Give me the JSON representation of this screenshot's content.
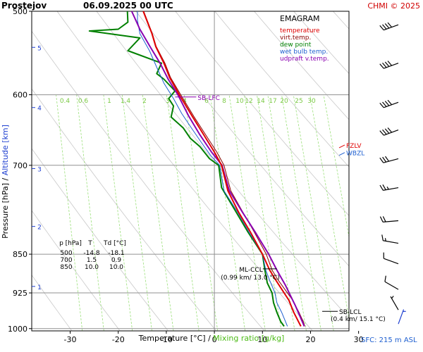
{
  "header": {
    "station": "Prostejov",
    "datetime": "06.09.2025 00 UTC",
    "credit": "CHMI © 2025"
  },
  "chart_data": {
    "type": "line",
    "subtype": "emagram",
    "title": "EMAGRAM",
    "xlabel_temperature": "Temperature [°C]",
    "xlabel_separator": "/",
    "xlabel_mixing": "Mixing ratio [g/kg]",
    "ylabel_pressure": "Pressure [hPa]",
    "ylabel_separator": "/",
    "ylabel_altitude": "Altitude [km]",
    "footer": "SFC: 215 m ASL",
    "xlim": [
      -38,
      28
    ],
    "ylim_hpa": [
      1005,
      500
    ],
    "x_ticks": [
      -30,
      -20,
      -10,
      0,
      10,
      20,
      30
    ],
    "p_ticks": [
      500,
      600,
      700,
      850,
      925,
      1000
    ],
    "altitude_ticks_km": [
      {
        "km": "1",
        "p": 912
      },
      {
        "km": "2",
        "p": 800
      },
      {
        "km": "3",
        "p": 705
      },
      {
        "km": "4",
        "p": 617
      },
      {
        "km": "5",
        "p": 541
      }
    ],
    "mixing_ratio_labels": [
      "0.4",
      "0.6",
      "1",
      "1.4",
      "2",
      "3",
      "4",
      "6",
      "8",
      "10",
      "12",
      "14",
      "17",
      "20",
      "25",
      "30"
    ],
    "legend": {
      "position": "top-right",
      "entries": [
        {
          "label": "temperature",
          "color": "#e00000"
        },
        {
          "label": "virt.temp.",
          "color": "#8b0000"
        },
        {
          "label": "dew point",
          "color": "#008000"
        },
        {
          "label": "wet bulb temp.",
          "color": "#1e5fd0"
        },
        {
          "label": "udpraft v.temp.",
          "color": "#8a00b0"
        }
      ]
    },
    "series": [
      {
        "name": "temperature",
        "color": "#e00000",
        "points": [
          [
            18.0,
            995
          ],
          [
            17.5,
            985
          ],
          [
            16.5,
            965
          ],
          [
            15.5,
            940
          ],
          [
            14.5,
            925
          ],
          [
            12.8,
            900
          ],
          [
            11.5,
            880
          ],
          [
            10.0,
            850
          ],
          [
            7.5,
            810
          ],
          [
            5.0,
            775
          ],
          [
            2.8,
            740
          ],
          [
            1.5,
            700
          ],
          [
            0.0,
            680
          ],
          [
            -2.2,
            655
          ],
          [
            -4.5,
            630
          ],
          [
            -7.3,
            600
          ],
          [
            -9.3,
            578
          ],
          [
            -10.5,
            560
          ],
          [
            -12.2,
            540
          ],
          [
            -13.0,
            525
          ],
          [
            -14.8,
            500
          ]
        ]
      },
      {
        "name": "virt.temp.",
        "color": "#8b0000",
        "points": [
          [
            18.8,
            995
          ],
          [
            18.5,
            985
          ],
          [
            17.6,
            965
          ],
          [
            16.3,
            940
          ],
          [
            15.2,
            925
          ],
          [
            13.3,
            900
          ],
          [
            12.0,
            880
          ],
          [
            10.8,
            850
          ],
          [
            8.3,
            810
          ],
          [
            5.9,
            775
          ],
          [
            3.4,
            740
          ],
          [
            2.0,
            700
          ],
          [
            0.5,
            680
          ],
          [
            -1.8,
            655
          ],
          [
            -4.2,
            630
          ],
          [
            -7.0,
            600
          ],
          [
            -9.1,
            578
          ],
          [
            -10.3,
            560
          ],
          [
            -12.1,
            540
          ],
          [
            -12.9,
            525
          ],
          [
            -14.7,
            500
          ]
        ]
      },
      {
        "name": "dew point",
        "color": "#008000",
        "points": [
          [
            14.5,
            995
          ],
          [
            13.8,
            985
          ],
          [
            13.0,
            965
          ],
          [
            12.3,
            945
          ],
          [
            12.0,
            925
          ],
          [
            11.0,
            905
          ],
          [
            10.5,
            880
          ],
          [
            10.0,
            850
          ],
          [
            7.0,
            810
          ],
          [
            4.5,
            775
          ],
          [
            1.5,
            735
          ],
          [
            0.9,
            700
          ],
          [
            -1.0,
            690
          ],
          [
            -3.0,
            672
          ],
          [
            -5.0,
            660
          ],
          [
            -6.5,
            645
          ],
          [
            -9.0,
            630
          ],
          [
            -8.5,
            615
          ],
          [
            -9.5,
            605
          ],
          [
            -8.2,
            595
          ],
          [
            -10.5,
            580
          ],
          [
            -12.0,
            573
          ],
          [
            -11.0,
            560
          ],
          [
            -18.0,
            545
          ],
          [
            -15.5,
            530
          ],
          [
            -26.0,
            522
          ],
          [
            -20.0,
            520
          ],
          [
            -18.0,
            512
          ],
          [
            -18.1,
            500
          ]
        ]
      },
      {
        "name": "wet bulb temp.",
        "color": "#1e5fd0",
        "points": [
          [
            15.2,
            995
          ],
          [
            14.8,
            985
          ],
          [
            14.0,
            965
          ],
          [
            13.0,
            945
          ],
          [
            12.6,
            925
          ],
          [
            11.5,
            900
          ],
          [
            10.7,
            880
          ],
          [
            10.0,
            850
          ],
          [
            7.2,
            810
          ],
          [
            4.8,
            775
          ],
          [
            2.0,
            740
          ],
          [
            1.1,
            700
          ],
          [
            -0.8,
            685
          ],
          [
            -2.8,
            665
          ],
          [
            -4.8,
            645
          ],
          [
            -6.8,
            625
          ],
          [
            -8.5,
            605
          ],
          [
            -10.5,
            585
          ],
          [
            -12.0,
            565
          ],
          [
            -13.5,
            545
          ],
          [
            -15.5,
            525
          ],
          [
            -16.0,
            510
          ],
          [
            -16.0,
            500
          ]
        ]
      },
      {
        "name": "udpraft v.temp.",
        "color": "#8a00b0",
        "points": [
          [
            18.7,
            995
          ],
          [
            16.8,
            950
          ],
          [
            14.8,
            910
          ],
          [
            13.0,
            880
          ],
          [
            11.3,
            850
          ],
          [
            8.5,
            810
          ],
          [
            5.8,
            775
          ],
          [
            3.1,
            740
          ],
          [
            1.6,
            700
          ],
          [
            -0.6,
            680
          ],
          [
            -3.0,
            655
          ],
          [
            -5.4,
            628
          ],
          [
            -7.6,
            600
          ],
          [
            -9.6,
            580
          ],
          [
            -11.3,
            560
          ],
          [
            -13.4,
            540
          ],
          [
            -15.5,
            520
          ],
          [
            -17.2,
            500
          ]
        ]
      }
    ],
    "wind_barbs": [
      {
        "p": 515,
        "dir": 250,
        "kt": 40
      },
      {
        "p": 560,
        "dir": 250,
        "kt": 40
      },
      {
        "p": 610,
        "dir": 250,
        "kt": 40
      },
      {
        "p": 648,
        "dir": 250,
        "kt": 40
      },
      {
        "p": 690,
        "dir": 255,
        "kt": 30
      },
      {
        "p": 735,
        "dir": 260,
        "kt": 25
      },
      {
        "p": 790,
        "dir": 265,
        "kt": 20
      },
      {
        "p": 830,
        "dir": 280,
        "kt": 15
      },
      {
        "p": 868,
        "dir": 290,
        "kt": 10
      },
      {
        "p": 918,
        "dir": 300,
        "kt": 10
      },
      {
        "p": 960,
        "dir": 330,
        "kt": 5
      },
      {
        "p": 990,
        "dir": 20,
        "kt": 5
      }
    ],
    "table": {
      "headers": [
        "p [hPa]",
        "T",
        "Td [°C]"
      ],
      "rows": [
        [
          "500",
          "-14.8",
          "-18.1"
        ],
        [
          "700",
          "1.5",
          "0.9"
        ],
        [
          "850",
          "10.0",
          "10.0"
        ]
      ]
    },
    "annotations": [
      {
        "text": "SB-LFC",
        "t": -7.0,
        "p": 603,
        "color": "#8a00b0"
      },
      {
        "text": "ML-CCL",
        "sub": "(0.99 km/ 13.0 °C)",
        "t": 13.0,
        "p": 905,
        "color": "#000000"
      },
      {
        "text": "SB-LCL",
        "sub": "(0.4 km/ 15.1 °C)",
        "t": 15.1,
        "p": 963,
        "color": "#000000"
      },
      {
        "text": "FZLV",
        "p": 680,
        "color": "#e00000"
      },
      {
        "text": "WBZL",
        "p": 685,
        "color": "#1e5fd0"
      }
    ],
    "grid": true
  }
}
